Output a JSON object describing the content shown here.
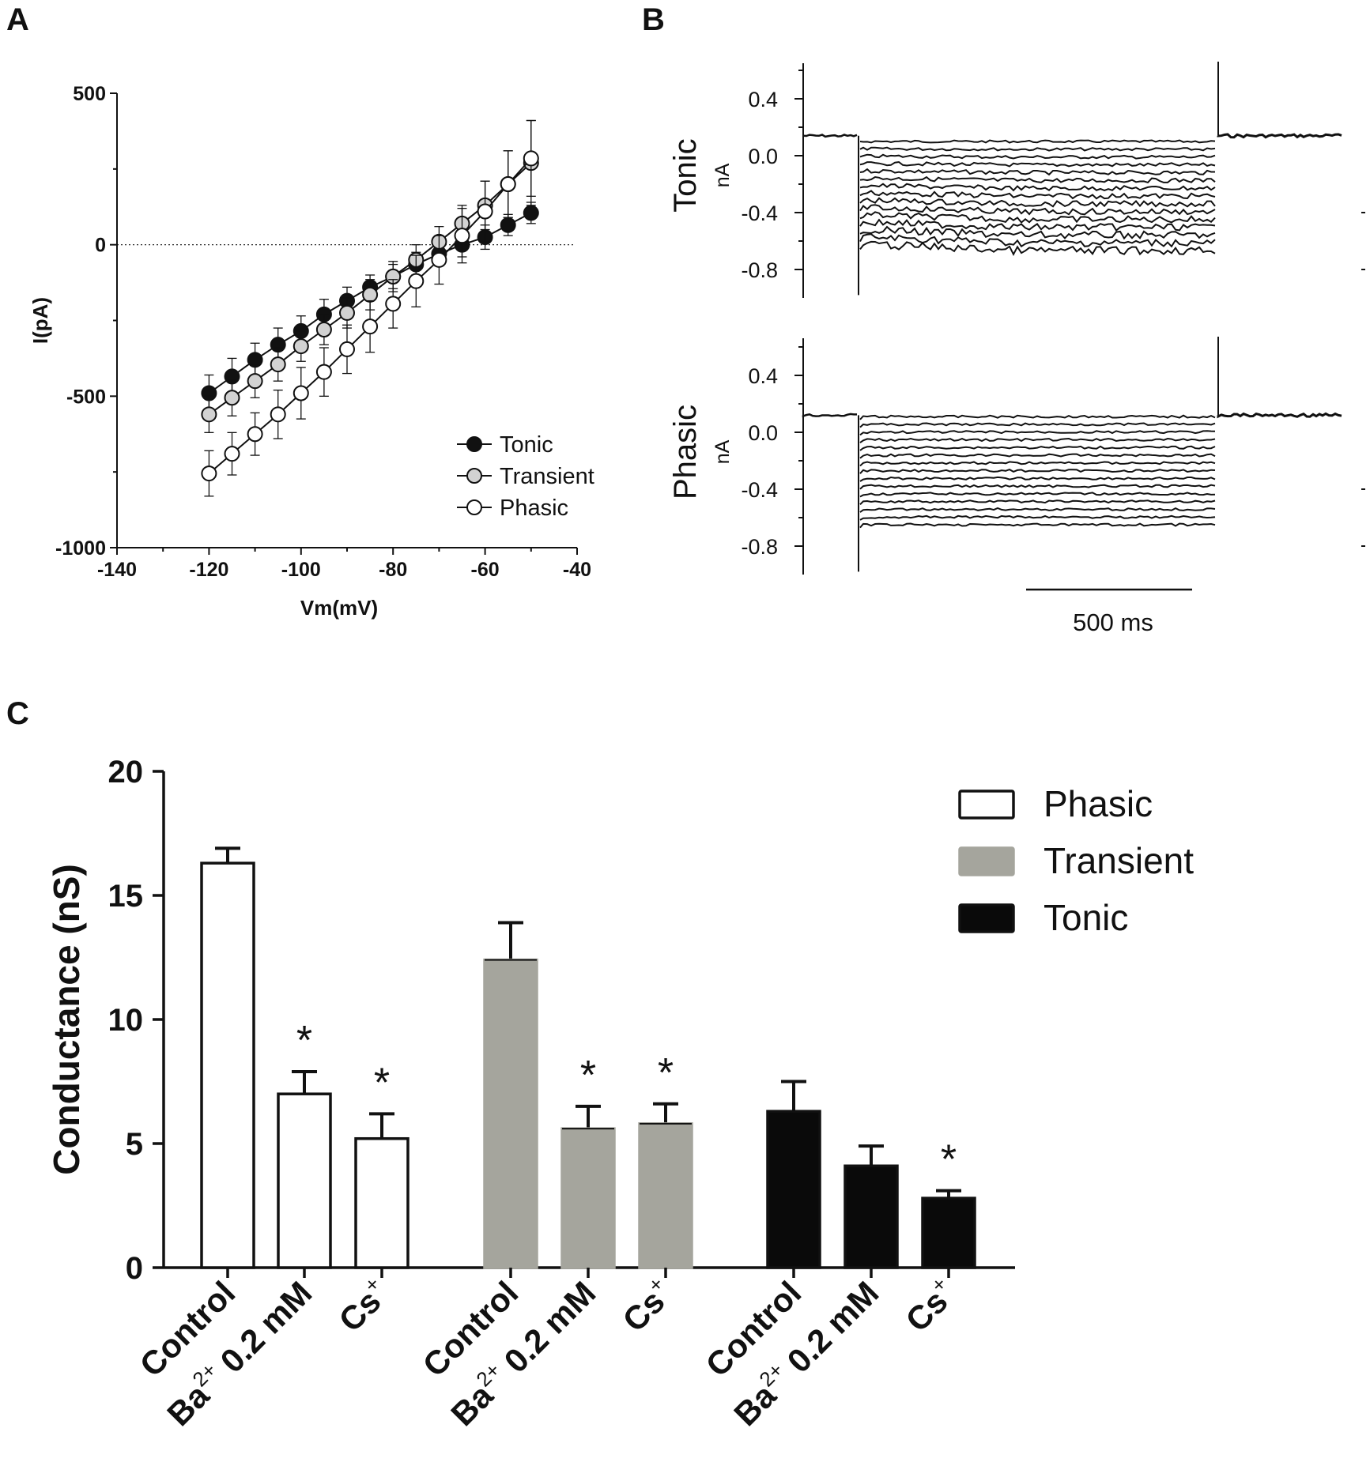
{
  "panels": {
    "a": "A",
    "b": "B",
    "c": "C"
  },
  "colors": {
    "ink": "#111111",
    "transient": "#d2d2d2",
    "transient_bar": "#a5a59d",
    "phasic": "#ffffff",
    "tonic": "#0a0a0a"
  },
  "chart_data": [
    {
      "id": "A",
      "type": "line",
      "xlabel": "Vm(mV)",
      "ylabel": "I(pA)",
      "xlim": [
        -140,
        -40
      ],
      "ylim": [
        -1000,
        500
      ],
      "xticks": [
        -140,
        -120,
        -100,
        -80,
        -60,
        -40
      ],
      "yticks": [
        -1000,
        -500,
        0,
        500
      ],
      "zero_line": true,
      "legend_position": "bottom-right",
      "x": [
        -120,
        -115,
        -110,
        -105,
        -100,
        -95,
        -90,
        -85,
        -80,
        -75,
        -70,
        -65,
        -60,
        -55,
        -50
      ],
      "series": [
        {
          "name": "Tonic",
          "marker": "filled",
          "values": [
            -490,
            -435,
            -380,
            -330,
            -285,
            -230,
            -185,
            -140,
            -105,
            -65,
            -30,
            0,
            25,
            65,
            105
          ],
          "errors": [
            60,
            60,
            55,
            55,
            50,
            50,
            45,
            40,
            40,
            40,
            40,
            40,
            40,
            35,
            35
          ]
        },
        {
          "name": "Transient",
          "marker": "gray",
          "values": [
            -560,
            -505,
            -450,
            -395,
            -335,
            -280,
            -225,
            -165,
            -105,
            -50,
            10,
            70,
            130,
            200,
            270
          ],
          "errors": [
            60,
            60,
            55,
            55,
            50,
            50,
            50,
            50,
            50,
            50,
            50,
            60,
            80,
            110,
            140
          ]
        },
        {
          "name": "Phasic",
          "marker": "open",
          "values": [
            -755,
            -690,
            -625,
            -560,
            -490,
            -420,
            -345,
            -270,
            -195,
            -120,
            -50,
            30,
            110,
            200,
            285
          ],
          "errors": [
            75,
            70,
            70,
            80,
            85,
            80,
            80,
            85,
            80,
            85,
            80,
            90,
            100,
            110,
            125
          ]
        }
      ]
    },
    {
      "id": "B",
      "type": "line",
      "ylabel_unit": "nA",
      "yticks": [
        "0.4",
        "0.0",
        "-0.4",
        "-0.8"
      ],
      "scale_bar": "500 ms",
      "traces": [
        {
          "name": "Tonic",
          "holding": 0.14,
          "steps": 15,
          "min_step": 0.1,
          "max_step": -0.62,
          "spike": -0.98
        },
        {
          "name": "Phasic",
          "holding": 0.12,
          "steps": 15,
          "min_step": 0.11,
          "max_step": -0.65,
          "spike": -0.98
        }
      ]
    },
    {
      "id": "C",
      "type": "bar",
      "ylabel": "Conductance (nS)",
      "ylim": [
        0,
        20
      ],
      "yticks": [
        0,
        5,
        10,
        15,
        20
      ],
      "legend_position": "top-right",
      "series": [
        {
          "name": "Phasic",
          "color": "#ffffff",
          "categories": [
            {
              "label": "Control",
              "sup": ""
            },
            {
              "label": "Ba",
              "sup": "2+",
              "suffix": " 0.2 mM"
            },
            {
              "label": "Cs",
              "sup": "+"
            }
          ],
          "values": [
            16.3,
            7.0,
            5.2
          ],
          "errors": [
            0.6,
            0.9,
            1.0
          ],
          "significant": [
            "",
            "*",
            "*"
          ]
        },
        {
          "name": "Transient",
          "color": "#a5a59d",
          "categories": [
            {
              "label": "Control",
              "sup": ""
            },
            {
              "label": "Ba",
              "sup": "2+",
              "suffix": " 0.2 mM"
            },
            {
              "label": "Cs",
              "sup": "+"
            }
          ],
          "values": [
            12.4,
            5.6,
            5.8
          ],
          "errors": [
            1.5,
            0.9,
            0.8
          ],
          "significant": [
            "",
            "*",
            "*"
          ]
        },
        {
          "name": "Tonic",
          "color": "#0a0a0a",
          "categories": [
            {
              "label": "Control",
              "sup": ""
            },
            {
              "label": "Ba",
              "sup": "2+",
              "suffix": " 0.2 mM"
            },
            {
              "label": "Cs",
              "sup": "+"
            }
          ],
          "values": [
            6.3,
            4.1,
            2.8
          ],
          "errors": [
            1.2,
            0.8,
            0.3
          ],
          "significant": [
            "",
            "",
            "*"
          ]
        }
      ]
    }
  ]
}
